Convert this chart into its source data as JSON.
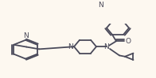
{
  "bg_color": "#fdf8f0",
  "line_color": "#4a4a5a",
  "lw": 1.3,
  "fs": 6.5,
  "xlim": [
    0,
    196
  ],
  "ylim": [
    0,
    99
  ]
}
